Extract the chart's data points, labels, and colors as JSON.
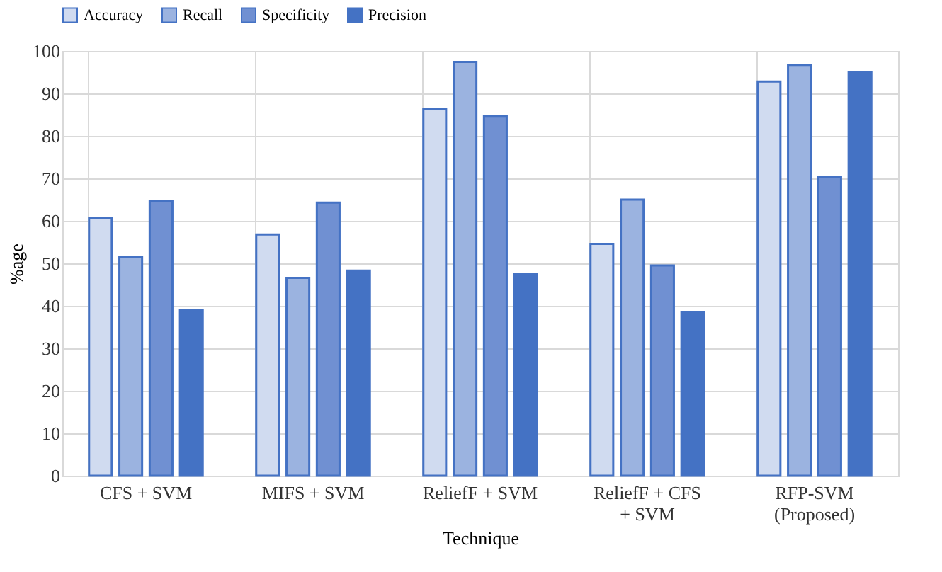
{
  "chart_data": {
    "type": "bar",
    "xlabel": "Technique",
    "ylabel": "%age",
    "categories": [
      "CFS + SVM",
      "MIFS + SVM",
      "ReliefF + SVM",
      "ReliefF + CFS + SVM",
      "RFP-SVM (Proposed)"
    ],
    "series": [
      {
        "name": "Accuracy",
        "color": "#d0dbf0",
        "values": [
          60.6,
          56.8,
          86.3,
          54.6,
          92.8
        ]
      },
      {
        "name": "Recall",
        "color": "#9bb3e0",
        "values": [
          51.4,
          46.6,
          97.4,
          65.0,
          96.7
        ]
      },
      {
        "name": "Specificity",
        "color": "#7090d2",
        "values": [
          64.7,
          64.3,
          84.7,
          49.5,
          70.3
        ]
      },
      {
        "name": "Precision",
        "color": "#4472c4",
        "values": [
          39.1,
          48.3,
          47.4,
          38.6,
          95.0
        ]
      }
    ],
    "ylim": [
      0,
      100
    ],
    "yticks": [
      0,
      10,
      20,
      30,
      40,
      50,
      60,
      70,
      80,
      90,
      100
    ],
    "grid": true,
    "legend": "top"
  }
}
